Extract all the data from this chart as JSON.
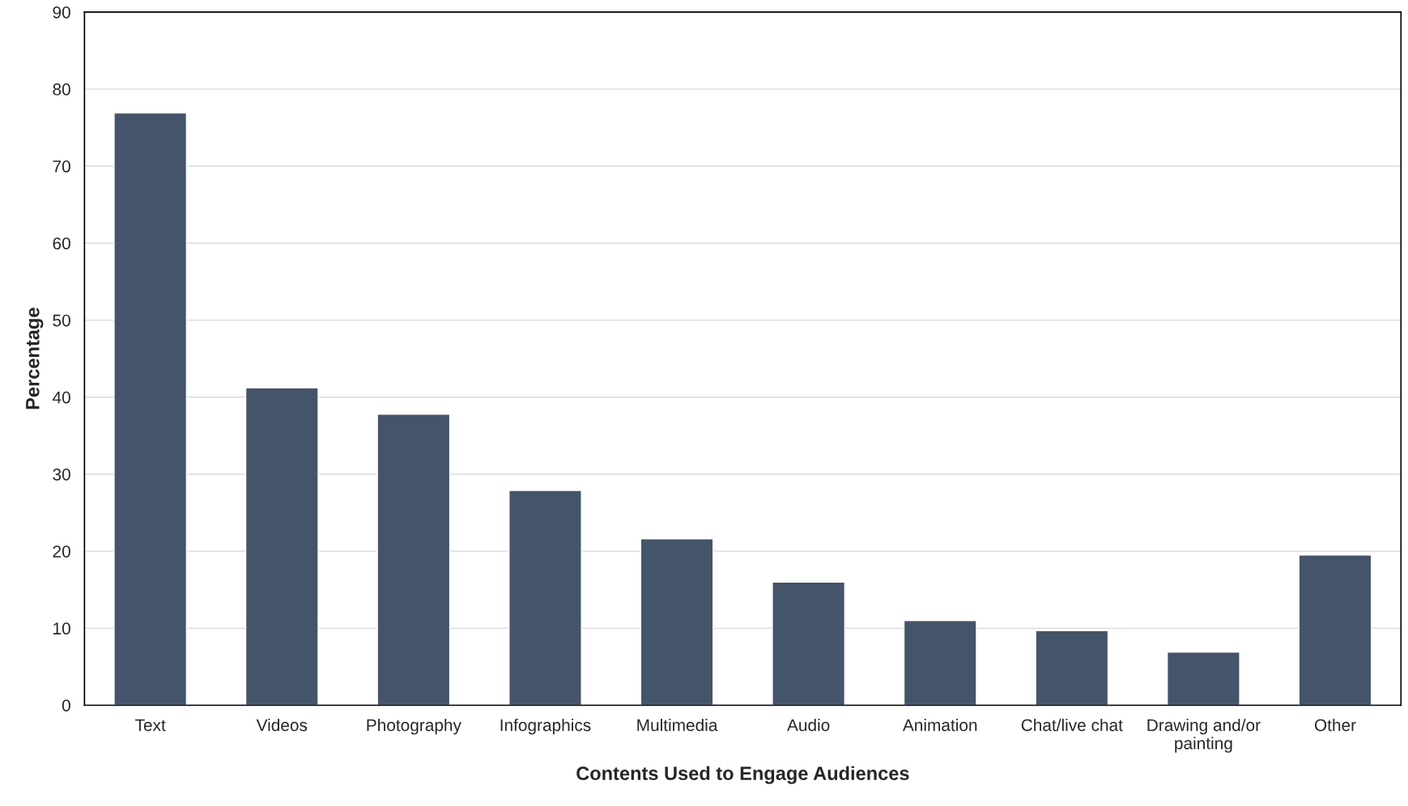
{
  "chart_data": {
    "type": "bar",
    "xlabel": "Contents Used to Engage Audiences",
    "ylabel": "Percentage",
    "categories": [
      "Text",
      "Videos",
      "Photography",
      "Infographics",
      "Multimedia",
      "Audio",
      "Animation",
      "Chat/live chat",
      "Drawing and/or\npainting",
      "Other"
    ],
    "values": [
      76.9,
      41.2,
      37.8,
      27.9,
      21.6,
      16.0,
      11.0,
      9.7,
      6.9,
      19.5
    ],
    "color": "#44546a",
    "ylim": [
      0,
      90
    ],
    "yticks": [
      0,
      10,
      20,
      30,
      40,
      50,
      60,
      70,
      80,
      90
    ],
    "grid": "y"
  }
}
